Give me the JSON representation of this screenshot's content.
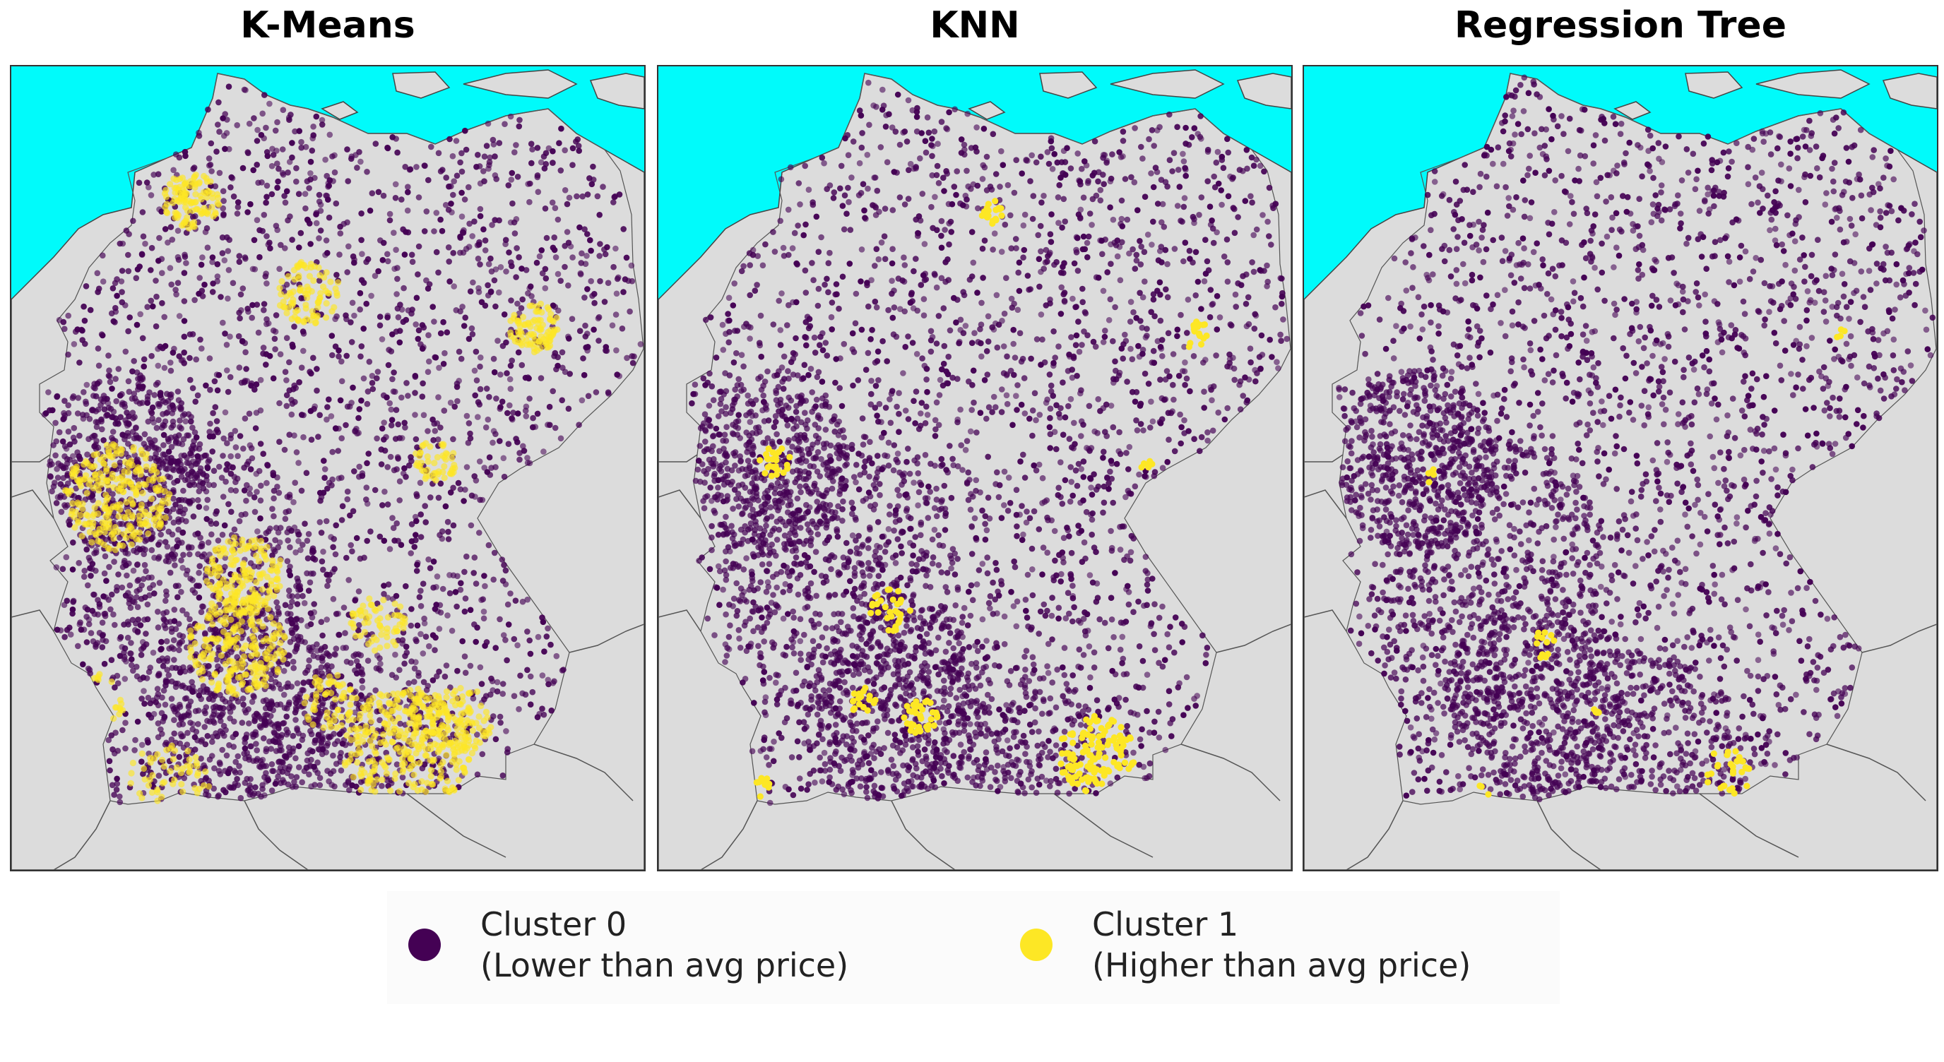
{
  "panels": [
    {
      "title": "K-Means",
      "method": "kmeans"
    },
    {
      "title": "KNN",
      "method": "knn"
    },
    {
      "title": "Regression Tree",
      "method": "tree"
    }
  ],
  "legend": {
    "items": [
      {
        "label_line1": "Cluster 0",
        "label_line2": "(Lower than avg price)",
        "color": "#440154"
      },
      {
        "label_line1": "Cluster 1",
        "label_line2": "(Higher than avg price)",
        "color": "#fde725"
      }
    ]
  },
  "colors": {
    "sea": "#00fbfb",
    "land": "#dcdcdc",
    "border": "#555555",
    "cluster0": "#440154",
    "cluster1": "#fde725"
  }
}
